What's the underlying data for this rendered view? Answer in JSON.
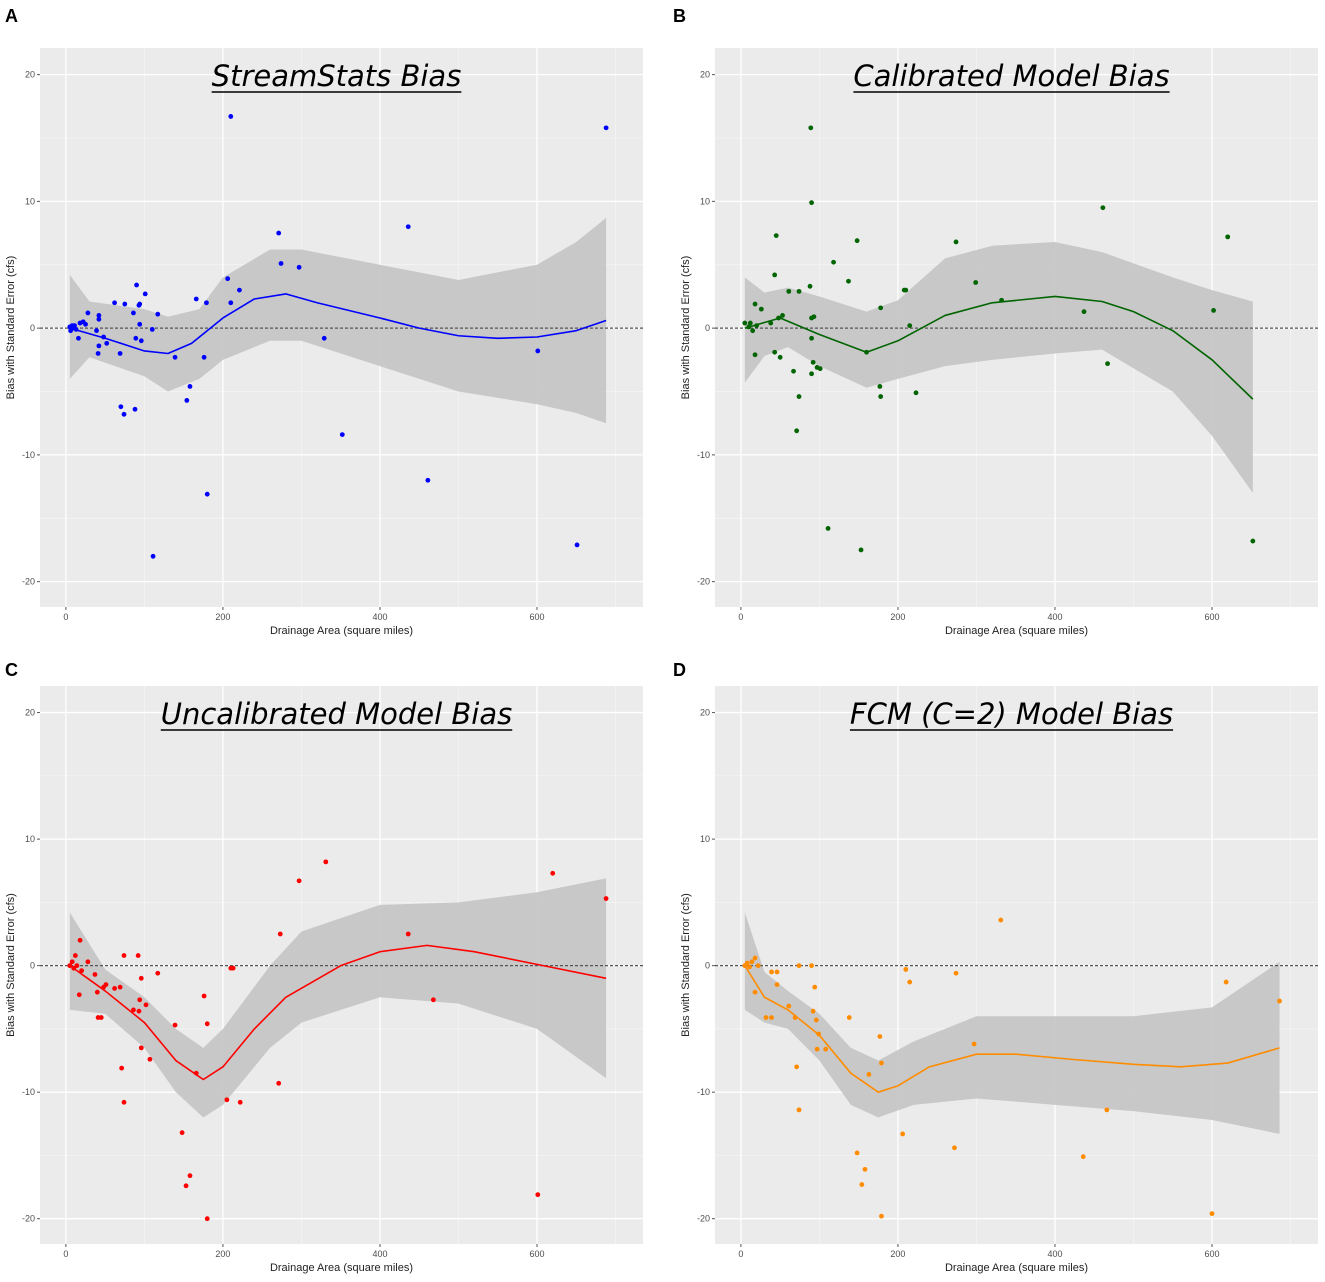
{
  "chart_data": [
    {
      "panel": "A",
      "type": "scatter",
      "title": "StreamStats Bias",
      "xlabel": "Drainage Area (square miles)",
      "ylabel": "Bias with Standard Error (cfs)",
      "xlim": [
        -33,
        735
      ],
      "ylim": [
        -22,
        22.1
      ],
      "xticks": [
        0,
        200,
        400,
        600
      ],
      "yticks": [
        -20,
        -10,
        0,
        10,
        20
      ],
      "grid": true,
      "reference_line_y": 0,
      "color": "#0000ff",
      "points": [
        [
          688,
          15.8
        ],
        [
          210,
          16.7
        ],
        [
          271,
          7.5
        ],
        [
          274,
          5.1
        ],
        [
          297,
          4.8
        ],
        [
          436,
          8.0
        ],
        [
          206,
          3.9
        ],
        [
          221,
          3.0
        ],
        [
          210,
          2.0
        ],
        [
          166,
          2.3
        ],
        [
          179,
          2.0
        ],
        [
          329,
          -0.8
        ],
        [
          601,
          -1.8
        ],
        [
          352,
          -8.4
        ],
        [
          461,
          -12.0
        ],
        [
          180,
          -13.1
        ],
        [
          111,
          -18.0
        ],
        [
          651,
          -17.1
        ],
        [
          158,
          -4.6
        ],
        [
          154,
          -5.7
        ],
        [
          139,
          -2.3
        ],
        [
          176,
          -2.3
        ],
        [
          90,
          3.4
        ],
        [
          101,
          2.7
        ],
        [
          93,
          1.8
        ],
        [
          94,
          1.9
        ],
        [
          62,
          2.0
        ],
        [
          75,
          1.9
        ],
        [
          86,
          1.2
        ],
        [
          117,
          1.1
        ],
        [
          28,
          1.2
        ],
        [
          42,
          1.0
        ],
        [
          42,
          0.7
        ],
        [
          94,
          0.3
        ],
        [
          110,
          -0.1
        ],
        [
          89,
          -0.8
        ],
        [
          96,
          -1.0
        ],
        [
          16,
          -0.8
        ],
        [
          39,
          -0.2
        ],
        [
          42,
          -1.4
        ],
        [
          48,
          -0.7
        ],
        [
          52,
          -1.2
        ],
        [
          41,
          -2.0
        ],
        [
          69,
          -2.0
        ],
        [
          70,
          -6.2
        ],
        [
          74,
          -6.8
        ],
        [
          88,
          -6.4
        ],
        [
          5,
          0.1
        ],
        [
          9,
          0
        ],
        [
          11,
          0.2
        ],
        [
          18,
          0.4
        ],
        [
          22,
          0.5
        ],
        [
          25,
          0.3
        ],
        [
          6,
          -0.2
        ],
        [
          8,
          0.2
        ],
        [
          13,
          -0.1
        ]
      ],
      "smooth": [
        [
          5,
          0
        ],
        [
          50,
          -0.8
        ],
        [
          100,
          -1.8
        ],
        [
          130,
          -2.0
        ],
        [
          160,
          -1.2
        ],
        [
          200,
          0.8
        ],
        [
          240,
          2.3
        ],
        [
          280,
          2.7
        ],
        [
          320,
          2.0
        ],
        [
          400,
          0.8
        ],
        [
          450,
          0
        ],
        [
          500,
          -0.6
        ],
        [
          550,
          -0.8
        ],
        [
          600,
          -0.7
        ],
        [
          650,
          -0.2
        ],
        [
          688,
          0.6
        ]
      ],
      "band": [
        [
          5,
          -4,
          4.2
        ],
        [
          30,
          -2.3,
          2.1
        ],
        [
          100,
          -3.8,
          1.5
        ],
        [
          130,
          -5,
          0.9
        ],
        [
          170,
          -4,
          1.5
        ],
        [
          200,
          -2.5,
          4
        ],
        [
          260,
          -1,
          6.2
        ],
        [
          300,
          -1,
          6.2
        ],
        [
          400,
          -3,
          5
        ],
        [
          500,
          -5,
          3.8
        ],
        [
          600,
          -6,
          5
        ],
        [
          650,
          -6.7,
          6.8
        ],
        [
          688,
          -7.5,
          8.7
        ]
      ]
    },
    {
      "panel": "B",
      "type": "scatter",
      "title": "Calibrated Model Bias",
      "xlabel": "Drainage Area (square miles)",
      "ylabel": "Bias with Standard Error (cfs)",
      "xlim": [
        -33,
        735
      ],
      "ylim": [
        -22,
        22.1
      ],
      "xticks": [
        0,
        200,
        400,
        600
      ],
      "yticks": [
        -20,
        -10,
        0,
        10,
        20
      ],
      "grid": true,
      "reference_line_y": 0,
      "color": "#006400",
      "points": [
        [
          89,
          15.8
        ],
        [
          90,
          9.9
        ],
        [
          45,
          7.3
        ],
        [
          148,
          6.9
        ],
        [
          274,
          6.8
        ],
        [
          461,
          9.5
        ],
        [
          620,
          7.2
        ],
        [
          118,
          5.2
        ],
        [
          43,
          4.2
        ],
        [
          137,
          3.7
        ],
        [
          299,
          3.6
        ],
        [
          88,
          3.3
        ],
        [
          61,
          2.9
        ],
        [
          74,
          2.9
        ],
        [
          208,
          3.0
        ],
        [
          210,
          3.0
        ],
        [
          332,
          2.2
        ],
        [
          18,
          1.9
        ],
        [
          178,
          1.6
        ],
        [
          437,
          1.3
        ],
        [
          602,
          1.4
        ],
        [
          215,
          0.2
        ],
        [
          5,
          0.4
        ],
        [
          10,
          0.1
        ],
        [
          12,
          0.4
        ],
        [
          15,
          -0.2
        ],
        [
          20,
          0.2
        ],
        [
          26,
          1.5
        ],
        [
          38,
          0.4
        ],
        [
          48,
          0.8
        ],
        [
          53,
          1.0
        ],
        [
          90,
          0.8
        ],
        [
          93,
          0.9
        ],
        [
          90,
          -0.8
        ],
        [
          97,
          -3.1
        ],
        [
          101,
          -3.2
        ],
        [
          90,
          -3.6
        ],
        [
          67,
          -3.4
        ],
        [
          74,
          -5.4
        ],
        [
          71,
          -8.1
        ],
        [
          18,
          -2.1
        ],
        [
          43,
          -1.9
        ],
        [
          50,
          -2.3
        ],
        [
          177,
          -4.6
        ],
        [
          178,
          -5.4
        ],
        [
          223,
          -5.1
        ],
        [
          160,
          -1.9
        ],
        [
          467,
          -2.8
        ],
        [
          111,
          -15.8
        ],
        [
          153,
          -17.5
        ],
        [
          652,
          -16.8
        ],
        [
          92,
          -2.7
        ]
      ],
      "smooth": [
        [
          5,
          0
        ],
        [
          50,
          0.8
        ],
        [
          100,
          -0.5
        ],
        [
          160,
          -1.9
        ],
        [
          200,
          -1
        ],
        [
          260,
          1
        ],
        [
          320,
          2
        ],
        [
          400,
          2.5
        ],
        [
          460,
          2.1
        ],
        [
          500,
          1.3
        ],
        [
          550,
          -0.2
        ],
        [
          600,
          -2.5
        ],
        [
          652,
          -5.6
        ]
      ],
      "band": [
        [
          5,
          -4.3,
          4
        ],
        [
          30,
          -2.2,
          2.8
        ],
        [
          60,
          -1.5,
          3.2
        ],
        [
          100,
          -3,
          2.5
        ],
        [
          160,
          -4.7,
          1.3
        ],
        [
          200,
          -4,
          2.2
        ],
        [
          260,
          -3,
          5.5
        ],
        [
          320,
          -2.5,
          6.5
        ],
        [
          400,
          -2,
          6.8
        ],
        [
          460,
          -1.7,
          6
        ],
        [
          550,
          -5,
          4
        ],
        [
          600,
          -8.5,
          3
        ],
        [
          652,
          -13,
          2.1
        ]
      ]
    },
    {
      "panel": "C",
      "type": "scatter",
      "title": "Uncalibrated Model Bias",
      "xlabel": "Drainage Area (square miles)",
      "ylabel": "Bias with Standard Error (cfs)",
      "xlim": [
        -33,
        735
      ],
      "ylim": [
        -22,
        22.1
      ],
      "xticks": [
        0,
        200,
        400,
        600
      ],
      "yticks": [
        -20,
        -10,
        0,
        10,
        20
      ],
      "grid": true,
      "reference_line_y": 0,
      "color": "#ff0000",
      "points": [
        [
          688,
          5.3
        ],
        [
          620,
          7.3
        ],
        [
          331,
          8.2
        ],
        [
          297,
          6.7
        ],
        [
          273,
          2.5
        ],
        [
          436,
          2.5
        ],
        [
          468,
          -2.7
        ],
        [
          271,
          -9.3
        ],
        [
          222,
          -10.8
        ],
        [
          205,
          -10.6
        ],
        [
          176,
          -2.4
        ],
        [
          180,
          -4.6
        ],
        [
          166,
          -8.5
        ],
        [
          148,
          -13.2
        ],
        [
          158,
          -16.6
        ],
        [
          153,
          -17.4
        ],
        [
          180,
          -20
        ],
        [
          601,
          -18.1
        ],
        [
          210,
          -0.2
        ],
        [
          213,
          -0.2
        ],
        [
          117,
          -0.6
        ],
        [
          139,
          -4.7
        ],
        [
          107,
          -7.4
        ],
        [
          96,
          -6.5
        ],
        [
          71,
          -8.1
        ],
        [
          74,
          -10.8
        ],
        [
          92,
          0.8
        ],
        [
          74,
          0.8
        ],
        [
          96,
          -1
        ],
        [
          94,
          -2.7
        ],
        [
          102,
          -3.1
        ],
        [
          86,
          -3.5
        ],
        [
          93,
          -3.6
        ],
        [
          69,
          -1.7
        ],
        [
          62,
          -1.8
        ],
        [
          51,
          -1.5
        ],
        [
          48,
          -1.7
        ],
        [
          40,
          -2.1
        ],
        [
          45,
          -4.1
        ],
        [
          41,
          -4.1
        ],
        [
          18,
          2
        ],
        [
          17,
          -2.3
        ],
        [
          28,
          0.3
        ],
        [
          37,
          -0.7
        ],
        [
          5,
          0
        ],
        [
          8,
          0.3
        ],
        [
          10,
          -0.2
        ],
        [
          12,
          0.8
        ],
        [
          14,
          0
        ],
        [
          20,
          -0.4
        ]
      ],
      "smooth": [
        [
          5,
          0
        ],
        [
          50,
          -2
        ],
        [
          100,
          -4.5
        ],
        [
          140,
          -7.5
        ],
        [
          175,
          -9
        ],
        [
          200,
          -8
        ],
        [
          240,
          -5
        ],
        [
          280,
          -2.5
        ],
        [
          350,
          0
        ],
        [
          400,
          1.1
        ],
        [
          460,
          1.6
        ],
        [
          520,
          1.1
        ],
        [
          600,
          0.1
        ],
        [
          688,
          -1
        ]
      ],
      "band": [
        [
          5,
          -3.5,
          4.2
        ],
        [
          50,
          -3.8,
          -0.3
        ],
        [
          100,
          -6.5,
          -2.5
        ],
        [
          140,
          -10,
          -5
        ],
        [
          175,
          -12,
          -6.5
        ],
        [
          200,
          -11,
          -5
        ],
        [
          260,
          -6.5,
          0
        ],
        [
          300,
          -4.5,
          2.7
        ],
        [
          400,
          -2.5,
          4.8
        ],
        [
          500,
          -3,
          5
        ],
        [
          600,
          -5,
          5.8
        ],
        [
          688,
          -8.9,
          6.9
        ]
      ]
    },
    {
      "panel": "D",
      "type": "scatter",
      "title": "FCM (C=2) Model Bias",
      "xlabel": "Drainage Area (square miles)",
      "ylabel": "Bias with Standard Error (cfs)",
      "xlim": [
        -33,
        735
      ],
      "ylim": [
        -22,
        22.1
      ],
      "xticks": [
        0,
        200,
        400,
        600
      ],
      "yticks": [
        -20,
        -10,
        0,
        10,
        20
      ],
      "grid": true,
      "reference_line_y": 0,
      "color": "#ff8c00",
      "points": [
        [
          331,
          3.6
        ],
        [
          618,
          -1.3
        ],
        [
          686,
          -2.8
        ],
        [
          210,
          -0.3
        ],
        [
          215,
          -1.3
        ],
        [
          274,
          -0.6
        ],
        [
          297,
          -6.2
        ],
        [
          466,
          -11.4
        ],
        [
          436,
          -15.1
        ],
        [
          600,
          -19.6
        ],
        [
          272,
          -14.4
        ],
        [
          206,
          -13.3
        ],
        [
          177,
          -5.6
        ],
        [
          179,
          -7.7
        ],
        [
          163,
          -8.6
        ],
        [
          148,
          -14.8
        ],
        [
          158,
          -16.1
        ],
        [
          154,
          -17.3
        ],
        [
          179,
          -19.8
        ],
        [
          138,
          -4.1
        ],
        [
          108,
          -6.6
        ],
        [
          99,
          -5.4
        ],
        [
          97,
          -6.6
        ],
        [
          96,
          -4.3
        ],
        [
          94,
          -1.7
        ],
        [
          90,
          0
        ],
        [
          74,
          0
        ],
        [
          71,
          -8.0
        ],
        [
          74,
          -11.4
        ],
        [
          92,
          -3.6
        ],
        [
          69,
          -4.1
        ],
        [
          61,
          -3.2
        ],
        [
          46,
          -1.5
        ],
        [
          39,
          -0.5
        ],
        [
          46,
          -0.5
        ],
        [
          18,
          -2.1
        ],
        [
          32,
          -4.1
        ],
        [
          39,
          -4.1
        ],
        [
          5,
          0
        ],
        [
          8,
          0.2
        ],
        [
          11,
          -0.1
        ],
        [
          14,
          0.3
        ],
        [
          18,
          0.6
        ],
        [
          22,
          0
        ]
      ],
      "smooth": [
        [
          5,
          0
        ],
        [
          30,
          -2.5
        ],
        [
          60,
          -3.5
        ],
        [
          100,
          -5.5
        ],
        [
          140,
          -8.5
        ],
        [
          175,
          -10
        ],
        [
          200,
          -9.5
        ],
        [
          240,
          -8
        ],
        [
          300,
          -7
        ],
        [
          350,
          -7
        ],
        [
          420,
          -7.4
        ],
        [
          500,
          -7.8
        ],
        [
          560,
          -8
        ],
        [
          620,
          -7.7
        ],
        [
          686,
          -6.5
        ]
      ],
      "band": [
        [
          5,
          -3.5,
          4.2
        ],
        [
          30,
          -4.5,
          -0.5
        ],
        [
          60,
          -5,
          -2
        ],
        [
          100,
          -7.5,
          -3.8
        ],
        [
          140,
          -11,
          -6.5
        ],
        [
          175,
          -12,
          -7.5
        ],
        [
          220,
          -11,
          -6
        ],
        [
          300,
          -10.5,
          -4
        ],
        [
          400,
          -11,
          -4
        ],
        [
          500,
          -11.5,
          -4
        ],
        [
          600,
          -12.2,
          -3.3
        ],
        [
          686,
          -13.3,
          0.3
        ]
      ]
    }
  ]
}
